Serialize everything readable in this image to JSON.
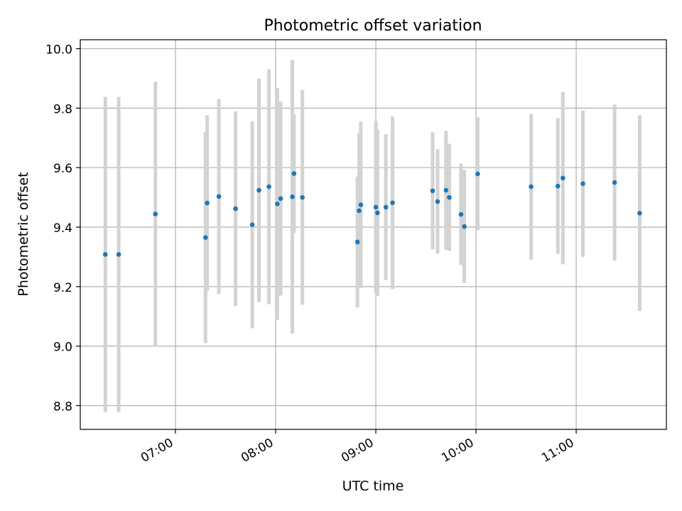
{
  "chart_data": {
    "type": "scatter",
    "title": "Photometric offset variation",
    "xlabel": "UTC time",
    "ylabel": "Photometric offset",
    "x_axis": "time",
    "xlim": [
      "06:03",
      "11:54"
    ],
    "ylim": [
      8.72,
      10.03
    ],
    "xticks": [
      "07:00",
      "08:00",
      "09:00",
      "10:00",
      "11:00"
    ],
    "yticks": [
      8.8,
      9.0,
      9.2,
      9.4,
      9.6,
      9.8,
      10.0
    ],
    "grid": true,
    "legend": "none",
    "colors": {
      "point": "#1f77b4",
      "errorbar": "#d3d3d3",
      "grid": "#b0b0b0"
    },
    "points": [
      {
        "t": "06:18",
        "y": 9.308,
        "err": 0.53
      },
      {
        "t": "06:26",
        "y": 9.308,
        "err": 0.53
      },
      {
        "t": "06:48",
        "y": 9.444,
        "err": 0.445
      },
      {
        "t": "07:18",
        "y": 9.365,
        "err": 0.355
      },
      {
        "t": "07:19",
        "y": 9.481,
        "err": 0.295
      },
      {
        "t": "07:26",
        "y": 9.503,
        "err": 0.328
      },
      {
        "t": "07:36",
        "y": 9.462,
        "err": 0.327
      },
      {
        "t": "07:46",
        "y": 9.408,
        "err": 0.348
      },
      {
        "t": "07:50",
        "y": 9.524,
        "err": 0.376
      },
      {
        "t": "07:56",
        "y": 9.536,
        "err": 0.395
      },
      {
        "t": "08:01",
        "y": 9.478,
        "err": 0.39
      },
      {
        "t": "08:03",
        "y": 9.496,
        "err": 0.326
      },
      {
        "t": "08:10",
        "y": 9.502,
        "err": 0.46
      },
      {
        "t": "08:11",
        "y": 9.58,
        "err": 0.2
      },
      {
        "t": "08:16",
        "y": 9.5,
        "err": 0.361
      },
      {
        "t": "08:49",
        "y": 9.35,
        "err": 0.22
      },
      {
        "t": "08:50",
        "y": 9.455,
        "err": 0.26
      },
      {
        "t": "08:51",
        "y": 9.475,
        "err": 0.28
      },
      {
        "t": "09:00",
        "y": 9.467,
        "err": 0.29
      },
      {
        "t": "09:01",
        "y": 9.448,
        "err": 0.28
      },
      {
        "t": "09:06",
        "y": 9.467,
        "err": 0.245
      },
      {
        "t": "09:10",
        "y": 9.482,
        "err": 0.29
      },
      {
        "t": "09:34",
        "y": 9.522,
        "err": 0.197
      },
      {
        "t": "09:37",
        "y": 9.486,
        "err": 0.175
      },
      {
        "t": "09:42",
        "y": 9.524,
        "err": 0.2
      },
      {
        "t": "09:44",
        "y": 9.5,
        "err": 0.18
      },
      {
        "t": "09:51",
        "y": 9.443,
        "err": 0.17
      },
      {
        "t": "09:53",
        "y": 9.402,
        "err": 0.19
      },
      {
        "t": "10:01",
        "y": 9.579,
        "err": 0.19
      },
      {
        "t": "10:33",
        "y": 9.536,
        "err": 0.245
      },
      {
        "t": "10:49",
        "y": 9.538,
        "err": 0.228
      },
      {
        "t": "10:52",
        "y": 9.565,
        "err": 0.29
      },
      {
        "t": "11:04",
        "y": 9.546,
        "err": 0.246
      },
      {
        "t": "11:23",
        "y": 9.55,
        "err": 0.262
      },
      {
        "t": "11:38",
        "y": 9.447,
        "err": 0.329
      }
    ]
  }
}
